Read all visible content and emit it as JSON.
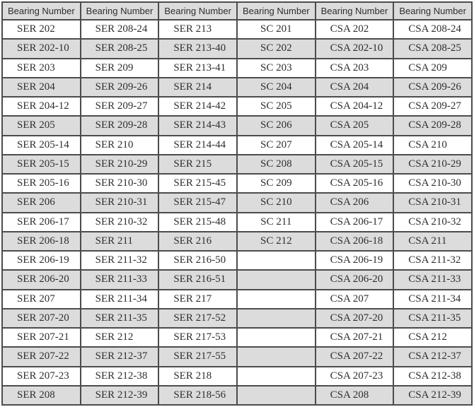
{
  "table": {
    "description": "Bearing number cross-reference table",
    "num_columns": 6,
    "num_data_rows": 20,
    "headers": [
      "Bearing Number",
      "Bearing Number",
      "Bearing Number",
      "Bearing Number",
      "Bearing Number",
      "Bearing Number"
    ],
    "rows": [
      [
        "SER 202",
        "SER 208-24",
        "SER 213",
        "SC 201",
        "CSA 202",
        "CSA 208-24"
      ],
      [
        "SER 202-10",
        "SER 208-25",
        "SER 213-40",
        "SC 202",
        "CSA 202-10",
        "CSA 208-25"
      ],
      [
        "SER 203",
        "SER 209",
        "SER 213-41",
        "SC 203",
        "CSA 203",
        "CSA 209"
      ],
      [
        "SER 204",
        "SER 209-26",
        "SER 214",
        "SC 204",
        "CSA 204",
        "CSA 209-26"
      ],
      [
        "SER 204-12",
        "SER 209-27",
        "SER 214-42",
        "SC 205",
        "CSA 204-12",
        "CSA 209-27"
      ],
      [
        "SER 205",
        "SER 209-28",
        "SER 214-43",
        "SC 206",
        "CSA 205",
        "CSA 209-28"
      ],
      [
        "SER 205-14",
        "SER 210",
        "SER 214-44",
        "SC 207",
        "CSA 205-14",
        "CSA 210"
      ],
      [
        "SER 205-15",
        "SER 210-29",
        "SER 215",
        "SC 208",
        "CSA 205-15",
        "CSA 210-29"
      ],
      [
        "SER 205-16",
        "SER 210-30",
        "SER 215-45",
        "SC 209",
        "CSA 205-16",
        "CSA 210-30"
      ],
      [
        "SER 206",
        "SER 210-31",
        "SER 215-47",
        "SC 210",
        "CSA 206",
        "CSA 210-31"
      ],
      [
        "SER 206-17",
        "SER 210-32",
        "SER 215-48",
        "SC 211",
        "CSA 206-17",
        "CSA 210-32"
      ],
      [
        "SER 206-18",
        "SER 211",
        "SER 216",
        "SC 212",
        "CSA 206-18",
        "CSA 211"
      ],
      [
        "SER 206-19",
        "SER 211-32",
        "SER 216-50",
        "",
        "CSA 206-19",
        "CSA 211-32"
      ],
      [
        "SER 206-20",
        "SER 211-33",
        "SER 216-51",
        "",
        "CSA 206-20",
        "CSA 211-33"
      ],
      [
        "SER 207",
        "SER 211-34",
        "SER 217",
        "",
        "CSA 207",
        "CSA 211-34"
      ],
      [
        "SER 207-20",
        "SER 211-35",
        "SER 217-52",
        "",
        "CSA 207-20",
        "CSA 211-35"
      ],
      [
        "SER 207-21",
        "SER 212",
        "SER 217-53",
        "",
        "CSA 207-21",
        "CSA 212"
      ],
      [
        "SER 207-22",
        "SER 212-37",
        "SER 217-55",
        "",
        "CSA 207-22",
        "CSA 212-37"
      ],
      [
        "SER 207-23",
        "SER 212-38",
        "SER 218",
        "",
        "CSA 207-23",
        "CSA 212-38"
      ],
      [
        "SER 208",
        "SER 212-39",
        "SER 218-56",
        "",
        "CSA 208",
        "CSA 212-39"
      ]
    ],
    "colors": {
      "stripe_gray": "#dcdcdc",
      "header_bg": "#dcdcdc",
      "border": "#4c4c4c",
      "text": "#2e2e2e",
      "row_white": "#ffffff"
    }
  }
}
